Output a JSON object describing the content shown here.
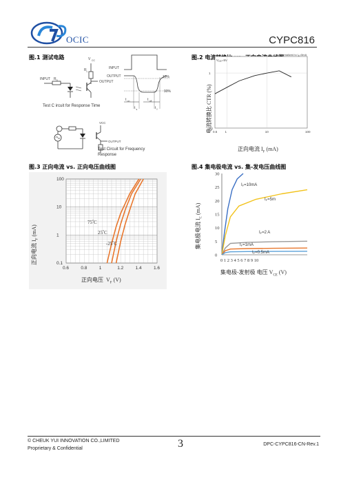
{
  "header": {
    "logo_text": "OCIC",
    "part_number": "CYPC816"
  },
  "fig1": {
    "caption": "图.1 测试电路",
    "vcc": "V",
    "vcc_sub": "CC",
    "rl": "R",
    "rl_sub": "L",
    "input": "INPUT",
    "rd": "R",
    "rd_sub": "D",
    "output": "OUTPUT",
    "wave_input": "INPUT",
    "wave_output": "OUTPUT",
    "pct10": "10%",
    "pct90": "90%",
    "ton": "t",
    "ton_sub": "on",
    "toff": "t",
    "toff_sub": "off",
    "ts": "t",
    "ts_sub": "s",
    "tf": "t",
    "tf_sub": "f",
    "response_label": "Test C ircuit for Response Time",
    "vcc2": "VCC",
    "output2": "OUTPUT",
    "freq_label_1": "Test Circuit for Frequency",
    "freq_label_2": "Response"
  },
  "fig2": {
    "caption": "图.2 电流转换比  vs. 正向电流曲线图",
    "ylabel": "电流转换比 CTR (%)",
    "xlabel_cn": "正向电流",
    "xlabel_sym": "I",
    "xlabel_sub": "F",
    "xlabel_unit": "(mA)",
    "note": "V",
    "note_sub": "CE",
    "note_val": "=5V",
    "legend": "Normalized to I",
    "legend_sub": "F",
    "legend_val": "=5mA",
    "chart_data": {
      "type": "line",
      "x_scale": "log",
      "y_scale": "log",
      "xlim": [
        0.5,
        100
      ],
      "ylim": [
        0.1,
        2
      ],
      "x_ticks": [
        "0.5",
        "1",
        "10",
        "100"
      ],
      "y_ticks": [
        "0.1",
        "1"
      ],
      "series": [
        {
          "x": [
            0.5,
            1,
            2,
            5,
            10,
            20,
            40
          ],
          "y": [
            0.42,
            0.55,
            0.72,
            0.9,
            1.0,
            1.1,
            0.85
          ]
        }
      ]
    }
  },
  "fig3": {
    "caption": "图.3 正向电流 vs. 正向电压曲线图",
    "ylabel_cn": "正向电流",
    "ylabel_sym": "I",
    "ylabel_sub": "F",
    "ylabel_unit": "(mA)",
    "xlabel_cn": "正向电压",
    "xlabel_sym": "V",
    "xlabel_sub": "F",
    "xlabel_unit": "(V)",
    "t75": "75",
    "t25": "25",
    "tm25": "-25",
    "deg": "o",
    "c": "C",
    "chart_data": {
      "type": "line",
      "x_scale": "linear",
      "y_scale": "log",
      "xlim": [
        0.6,
        1.6
      ],
      "ylim": [
        0.1,
        100
      ],
      "x_ticks": [
        "0.6",
        "0.8",
        "1",
        "1.2",
        "1.4",
        "1.6"
      ],
      "y_ticks": [
        "0.1",
        "1",
        "10",
        "100"
      ],
      "grid": true,
      "series": [
        {
          "name": "75",
          "x": [
            1.05,
            1.1,
            1.15,
            1.2,
            1.3,
            1.4
          ],
          "y": [
            0.1,
            0.5,
            2,
            6,
            30,
            100
          ]
        },
        {
          "name": "25",
          "x": [
            1.1,
            1.15,
            1.2,
            1.25,
            1.32,
            1.42
          ],
          "y": [
            0.1,
            0.6,
            2.5,
            8,
            30,
            100
          ]
        },
        {
          "name": "-25",
          "x": [
            1.15,
            1.2,
            1.25,
            1.3,
            1.36,
            1.45
          ],
          "y": [
            0.1,
            0.6,
            2.5,
            8,
            30,
            100
          ]
        }
      ],
      "color": "#e8762c"
    }
  },
  "fig4": {
    "caption": "图.4 集电极电流  vs. 集-发电压曲线图",
    "ylabel_cn": "集电极电流",
    "ylabel_sym": "I",
    "ylabel_sub": "C",
    "ylabel_unit": "(mA)",
    "xlabel_cn": "集电极-发射极  电压",
    "xlabel_sym": "V",
    "xlabel_sub": "CE",
    "xlabel_unit": "(V)",
    "x_tick_text": "0 1 2 3 4 5 6 7 8 9 10",
    "lbl_10": "I",
    "lbl_10_sub": "F",
    "lbl_10_val": "=10mA",
    "lbl_5": "I",
    "lbl_5_sub": "F",
    "lbl_5_val": "=5m",
    "lbl_2": "I",
    "lbl_2_sub": "F",
    "lbl_2_val": "=2   A",
    "lbl_1": "I",
    "lbl_1_sub": "F",
    "lbl_1_val": "=1mA",
    "lbl_05": "I",
    "lbl_05_sub": "F",
    "lbl_05_val": "=0.5mA",
    "chart_data": {
      "type": "line",
      "xlim": [
        0,
        10
      ],
      "ylim": [
        0,
        30
      ],
      "y_ticks": [
        "0",
        "5",
        "10",
        "15",
        "20",
        "25",
        "30"
      ],
      "series": [
        {
          "name": "IF=10mA",
          "color": "#3a6fc4",
          "x": [
            0,
            0.3,
            0.7,
            1.2,
            1.8,
            2.5
          ],
          "y": [
            0,
            8,
            17,
            24,
            28,
            31
          ]
        },
        {
          "name": "IF=5mA",
          "color": "#f2c21b",
          "x": [
            0,
            0.4,
            1,
            2,
            4,
            7,
            10
          ],
          "y": [
            0,
            7,
            14,
            18,
            20.5,
            22.5,
            24
          ]
        },
        {
          "name": "IF=2mA",
          "color": "#9a9a9a",
          "x": [
            0,
            0.4,
            1,
            3,
            6,
            10
          ],
          "y": [
            0,
            2.5,
            4.2,
            4.6,
            4.8,
            5
          ]
        },
        {
          "name": "IF=1mA",
          "color": "#e8762c",
          "x": [
            0,
            0.4,
            1,
            3,
            6,
            10
          ],
          "y": [
            0,
            1.5,
            2.1,
            2.3,
            2.4,
            2.5
          ]
        },
        {
          "name": "IF=0.5mA",
          "color": "#5aa0d8",
          "x": [
            0,
            0.4,
            1,
            3,
            6,
            10
          ],
          "y": [
            0,
            0.8,
            1.1,
            1.2,
            1.25,
            1.3
          ]
        }
      ]
    }
  },
  "footer": {
    "copyright": "© CHEUK YUI INNOVATION CO.,LIMITED",
    "confidential": "Proprietary & Confidential",
    "page": "3",
    "doc_id": "DPC-CYPC816-CN-Rev.1"
  }
}
